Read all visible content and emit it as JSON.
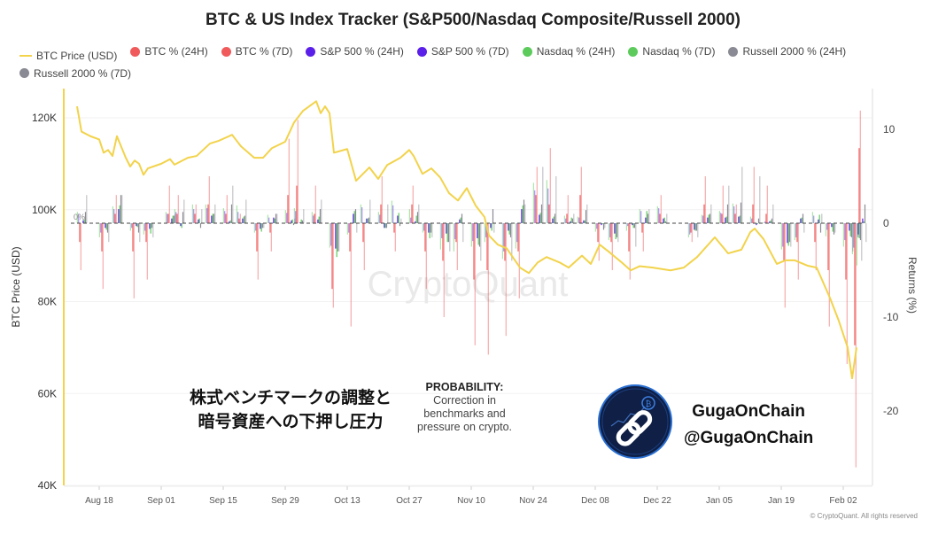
{
  "chart_data": {
    "type": "bar+line",
    "title": "BTC & US Index Tracker (S&P500/Nasdaq Composite/Russell 2000)",
    "ylabel_left": "BTC Price (USD)",
    "ylabel_right": "Returns (%)",
    "ylim_left": [
      40000,
      125000
    ],
    "ylim_right": [
      -26,
      14
    ],
    "yticks_left": [
      "40K",
      "60K",
      "80K",
      "100K",
      "120K"
    ],
    "yticks_left_values": [
      40000,
      60000,
      80000,
      100000,
      120000
    ],
    "yticks_right": [
      "10",
      "0",
      "-10",
      "-20"
    ],
    "yticks_right_values": [
      10,
      0,
      -10,
      -20
    ],
    "zero_label": "0%",
    "xticks": [
      "Aug 18",
      "Sep 01",
      "Sep 15",
      "Sep 29",
      "Oct 13",
      "Oct 27",
      "Nov 10",
      "Nov 24",
      "Dec 08",
      "Dec 22",
      "Jan 05",
      "Jan 19",
      "Feb 02"
    ],
    "xtick_dates": [
      "2025-08-18",
      "2025-09-01",
      "2025-09-15",
      "2025-09-29",
      "2025-10-13",
      "2025-10-27",
      "2025-11-10",
      "2025-11-24",
      "2025-12-08",
      "2025-12-22",
      "2026-01-05",
      "2026-01-19",
      "2026-02-02"
    ],
    "xlim": [
      "2025-08-11",
      "2026-02-09"
    ],
    "grid": true,
    "legend_placement": "top",
    "legend": [
      {
        "name": "BTC Price (USD)",
        "color": "#f2d34b",
        "shape": "line"
      },
      {
        "name": "BTC % (24H)",
        "color": "#f05a5a",
        "shape": "dot"
      },
      {
        "name": "BTC % (7D)",
        "color": "#f05a5a",
        "shape": "dot"
      },
      {
        "name": "S&P 500 % (24H)",
        "color": "#5a1fe8",
        "shape": "dot"
      },
      {
        "name": "S&P 500 % (7D)",
        "color": "#5a1fe8",
        "shape": "dot"
      },
      {
        "name": "Nasdaq % (24H)",
        "color": "#5ccb5c",
        "shape": "dot"
      },
      {
        "name": "Nasdaq % (7D)",
        "color": "#5ccb5c",
        "shape": "dot"
      },
      {
        "name": "Russell 2000 % (24H)",
        "color": "#8a8a94",
        "shape": "dot"
      },
      {
        "name": "Russell 2000 % (7D)",
        "color": "#8a8a94",
        "shape": "dot"
      }
    ],
    "btc_price": {
      "x": [
        "2025-08-13",
        "2025-08-14",
        "2025-08-16",
        "2025-08-18",
        "2025-08-19",
        "2025-08-20",
        "2025-08-21",
        "2025-08-22",
        "2025-08-24",
        "2025-08-25",
        "2025-08-26",
        "2025-08-27",
        "2025-08-28",
        "2025-08-29",
        "2025-09-01",
        "2025-09-03",
        "2025-09-04",
        "2025-09-07",
        "2025-09-09",
        "2025-09-12",
        "2025-09-14",
        "2025-09-17",
        "2025-09-19",
        "2025-09-22",
        "2025-09-24",
        "2025-09-26",
        "2025-09-29",
        "2025-10-01",
        "2025-10-03",
        "2025-10-06",
        "2025-10-07",
        "2025-10-08",
        "2025-10-09",
        "2025-10-10",
        "2025-10-13",
        "2025-10-15",
        "2025-10-18",
        "2025-10-20",
        "2025-10-22",
        "2025-10-25",
        "2025-10-27",
        "2025-10-28",
        "2025-10-30",
        "2025-11-01",
        "2025-11-03",
        "2025-11-05",
        "2025-11-07",
        "2025-11-09",
        "2025-11-11",
        "2025-11-13",
        "2025-11-14",
        "2025-11-16",
        "2025-11-18",
        "2025-11-21",
        "2025-11-23",
        "2025-11-25",
        "2025-11-27",
        "2025-11-30",
        "2025-12-02",
        "2025-12-05",
        "2025-12-07",
        "2025-12-09",
        "2025-12-11",
        "2025-12-14",
        "2025-12-16",
        "2025-12-18",
        "2025-12-21",
        "2025-12-25",
        "2025-12-28",
        "2025-12-31",
        "2026-01-04",
        "2026-01-07",
        "2026-01-10",
        "2026-01-12",
        "2026-01-13",
        "2026-01-15",
        "2026-01-18",
        "2026-01-20",
        "2026-01-22",
        "2026-01-25",
        "2026-01-27",
        "2026-01-30",
        "2026-02-01",
        "2026-02-03",
        "2026-02-04",
        "2026-02-05"
      ],
      "y": [
        122500,
        117000,
        116000,
        115300,
        112400,
        113000,
        111700,
        116000,
        111300,
        109400,
        110700,
        110000,
        107600,
        109000,
        110000,
        111000,
        109800,
        111300,
        111700,
        114400,
        115000,
        116300,
        113800,
        111300,
        111300,
        113400,
        114800,
        119000,
        121500,
        123600,
        121000,
        122500,
        121000,
        112400,
        113200,
        106300,
        109200,
        106700,
        109700,
        111300,
        113000,
        111700,
        107800,
        109000,
        107000,
        103600,
        102000,
        104700,
        100900,
        98400,
        94400,
        92400,
        91600,
        87400,
        86200,
        88500,
        89700,
        88500,
        87400,
        90000,
        88200,
        92400,
        90900,
        88500,
        86800,
        87700,
        87400,
        86800,
        87400,
        89700,
        94000,
        90500,
        91300,
        95100,
        95900,
        93600,
        88200,
        89000,
        89000,
        87800,
        87400,
        80800,
        75800,
        70000,
        63300,
        70000
      ]
    },
    "returns": {
      "dates": [
        "2025-08-14",
        "2025-08-19",
        "2025-08-22",
        "2025-08-26",
        "2025-08-29",
        "2025-09-03",
        "2025-09-05",
        "2025-09-09",
        "2025-09-12",
        "2025-09-16",
        "2025-09-19",
        "2025-09-23",
        "2025-09-26",
        "2025-09-30",
        "2025-10-02",
        "2025-10-06",
        "2025-10-10",
        "2025-10-14",
        "2025-10-17",
        "2025-10-21",
        "2025-10-24",
        "2025-10-28",
        "2025-10-31",
        "2025-11-04",
        "2025-11-07",
        "2025-11-11",
        "2025-11-14",
        "2025-11-18",
        "2025-11-21",
        "2025-11-25",
        "2025-11-28",
        "2025-12-02",
        "2025-12-05",
        "2025-12-09",
        "2025-12-12",
        "2025-12-16",
        "2025-12-19",
        "2025-12-23",
        "2025-12-30",
        "2026-01-02",
        "2026-01-06",
        "2026-01-09",
        "2026-01-13",
        "2026-01-16",
        "2026-01-20",
        "2026-01-23",
        "2026-01-27",
        "2026-01-30",
        "2026-02-03",
        "2026-02-05",
        "2026-02-06"
      ],
      "series": [
        {
          "name": "BTC % (7D)",
          "color": "#f05a5a",
          "values": [
            -5,
            -7,
            3,
            -8,
            -6,
            4,
            3,
            2,
            5,
            3,
            1,
            -6,
            -3,
            9,
            11,
            4,
            -9,
            -11,
            -5,
            5,
            -3,
            4,
            -7,
            -10,
            -5,
            -13,
            -14,
            -12,
            -8,
            6,
            8,
            3,
            6,
            -4,
            -5,
            -6,
            -3,
            3,
            -2,
            5,
            4,
            2,
            6,
            4,
            -9,
            -6,
            -5,
            -11,
            -15,
            -26,
            12
          ]
        },
        {
          "name": "BTC % (24H)",
          "color": "#f05a5a",
          "values": [
            -2,
            -3,
            1,
            -3,
            -2,
            1,
            1,
            1,
            2,
            1,
            0.5,
            -3,
            -1,
            3,
            4,
            1,
            -7,
            -3,
            -2,
            2,
            -1,
            2,
            -3,
            -4,
            -2,
            -6,
            -5,
            -4,
            -3,
            3,
            2,
            1,
            3,
            -2,
            -2,
            -3,
            -1,
            1,
            -1,
            2,
            1,
            1,
            2,
            1,
            -4,
            -2,
            -2,
            -5,
            -6,
            -13,
            8
          ]
        },
        {
          "name": "S&P 500 % (24H)",
          "color": "#5a1fe8",
          "values": [
            0.3,
            -0.5,
            1.5,
            -0.3,
            -0.6,
            0.5,
            -0.3,
            0.4,
            0.8,
            0.2,
            0.5,
            -0.6,
            0.6,
            0.3,
            0.1,
            0.4,
            -2.7,
            1,
            0.5,
            -0.5,
            0.8,
            0.2,
            -1,
            -1.1,
            0.4,
            -1.6,
            -0.5,
            -0.8,
            1.5,
            0.9,
            0.5,
            0.2,
            0.3,
            -0.2,
            -1.1,
            -0.2,
            0.6,
            0.5,
            -0.7,
            0.6,
            0.6,
            0.7,
            -0.2,
            0.2,
            -2.1,
            0.5,
            0.4,
            -0.4,
            -0.8,
            -1.2,
            0.5
          ]
        },
        {
          "name": "S&P 500 % (7D)",
          "color": "#5a1fe8",
          "values": [
            1,
            -1,
            1.5,
            -0.5,
            -0.8,
            1,
            1.2,
            1.5,
            1.6,
            1.3,
            1.2,
            -0.8,
            0.6,
            1.1,
            1.3,
            0.8,
            -2.4,
            -1,
            1.7,
            0.9,
            1.9,
            0.6,
            -0.8,
            -1.6,
            -1.7,
            -1.9,
            -1.5,
            -3,
            -2,
            3.5,
            3.7,
            0.5,
            0.6,
            -0.6,
            -1.5,
            -0.3,
            1.3,
            1.6,
            -1.2,
            0.8,
            1.1,
            1.8,
            0.5,
            0.2,
            -2.5,
            -1.5,
            0.8,
            -0.7,
            -1.8,
            -2.6,
            -1.5
          ]
        },
        {
          "name": "Nasdaq % (24H)",
          "color": "#5ccb5c",
          "values": [
            0.4,
            -0.7,
            1.9,
            -0.4,
            -1.1,
            0.8,
            -0.5,
            0.5,
            1,
            0.3,
            0.7,
            -0.9,
            0.5,
            0.4,
            0.4,
            0.7,
            -3.6,
            1.3,
            0.5,
            -0.5,
            1.1,
            0.8,
            -1.6,
            -2,
            0.6,
            -2.3,
            -0.8,
            -1.2,
            1.9,
            1.1,
            0.7,
            0.6,
            0.3,
            -0.1,
            -1.7,
            -0.5,
            1.3,
            0.6,
            -0.8,
            0.9,
            0.7,
            0.8,
            -0.1,
            0.3,
            -2.4,
            0.6,
            0.9,
            -0.9,
            -1.4,
            -1.6,
            0.2
          ]
        },
        {
          "name": "Nasdaq % (7D)",
          "color": "#5ccb5c",
          "values": [
            1.2,
            -1.5,
            1.8,
            -0.8,
            -1.2,
            1.2,
            1.5,
            2,
            2,
            1.6,
            1.9,
            -1,
            0.9,
            1.4,
            1.6,
            1.2,
            -2.6,
            -1.2,
            2,
            1.2,
            2.4,
            1.5,
            -1,
            -2.8,
            -3,
            -2.5,
            -2,
            -3.8,
            -2.7,
            4.3,
            4.6,
            0.8,
            0.7,
            -0.9,
            -1.8,
            -0.8,
            1.5,
            1.8,
            -1.5,
            0.9,
            1.3,
            2.1,
            0.7,
            0.1,
            -2.8,
            -1.8,
            1.2,
            -1.4,
            -2.5,
            -3.3,
            -4.5
          ]
        },
        {
          "name": "Russell 2000 % (24H)",
          "color": "#8a8a94",
          "values": [
            1.2,
            -1,
            3,
            -1,
            -0.5,
            0.8,
            1.2,
            -0.5,
            1,
            2,
            0.8,
            -0.5,
            1,
            -0.2,
            0.3,
            1.5,
            -3,
            1.5,
            0.6,
            -0.5,
            -0.3,
            1.2,
            -1,
            -2,
            1,
            -2.5,
            1.5,
            -1.5,
            2.5,
            2,
            1,
            0.5,
            1.4,
            -0.7,
            -1.5,
            -0.5,
            1,
            0.2,
            -0.8,
            1,
            2,
            2.2,
            0.5,
            0.5,
            -2,
            1,
            -1,
            -1.2,
            -1.5,
            -1.8,
            2
          ]
        },
        {
          "name": "Russell 2000 % (7D)",
          "color": "#8a8a94",
          "values": [
            3,
            -2,
            3,
            -2,
            -1.5,
            1,
            2.5,
            1.5,
            2,
            4,
            2.5,
            -0.5,
            1,
            0.5,
            1.5,
            2.5,
            -3,
            -1,
            2.5,
            2,
            0.5,
            2,
            -1.5,
            -3,
            -2,
            -4,
            -1,
            -4,
            2,
            6,
            5,
            1,
            2,
            -0.5,
            -2,
            -2.5,
            1.5,
            1,
            -1.5,
            2,
            4,
            6,
            5,
            2,
            -2.5,
            -1,
            1,
            -1,
            -3,
            -4,
            -2
          ]
        }
      ]
    },
    "watermark": "CryptoQuant"
  },
  "annotation": {
    "jp_line1": "株式ベンチマークの調整と",
    "jp_line2": "暗号資産への下押し圧力",
    "prob_title": "PROBABILITY:",
    "prob_line1": "Correction in",
    "prob_line2": "benchmarks and",
    "prob_line3": "pressure on crypto."
  },
  "brand": {
    "name": "GugaOnChain",
    "handle": "@GugaOnChain",
    "logo_icon": "chain-link-icon"
  },
  "copyright": "© CryptoQuant. All rights reserved"
}
